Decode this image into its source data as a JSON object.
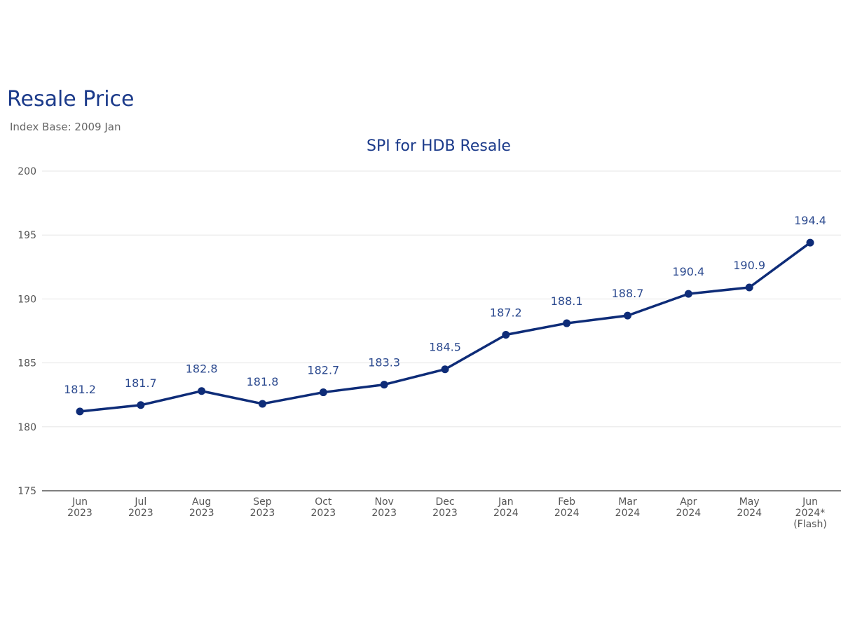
{
  "header": {
    "title": "Resale Price",
    "subtitle": "Index Base: 2009 Jan"
  },
  "chart_data": {
    "type": "line",
    "title": "SPI for HDB Resale",
    "xlabel": "",
    "ylabel": "",
    "ylim": [
      175,
      200
    ],
    "yticks": [
      175,
      180,
      185,
      190,
      195,
      200
    ],
    "grid": true,
    "categories": [
      [
        "Jun",
        "2023"
      ],
      [
        "Jul",
        "2023"
      ],
      [
        "Aug",
        "2023"
      ],
      [
        "Sep",
        "2023"
      ],
      [
        "Oct",
        "2023"
      ],
      [
        "Nov",
        "2023"
      ],
      [
        "Dec",
        "2023"
      ],
      [
        "Jan",
        "2024"
      ],
      [
        "Feb",
        "2024"
      ],
      [
        "Mar",
        "2024"
      ],
      [
        "Apr",
        "2024"
      ],
      [
        "May",
        "2024"
      ],
      [
        "Jun",
        "2024*",
        "(Flash)"
      ]
    ],
    "series": [
      {
        "values": [
          181.2,
          181.7,
          182.8,
          181.8,
          182.7,
          183.3,
          184.5,
          187.2,
          188.1,
          188.7,
          190.4,
          190.9,
          194.4
        ],
        "color": "#0e2c78"
      }
    ],
    "data_labels": [
      "181.2",
      "181.7",
      "182.8",
      "181.8",
      "182.7",
      "183.3",
      "184.5",
      "187.2",
      "188.1",
      "188.7",
      "190.4",
      "190.9",
      "194.4"
    ]
  }
}
